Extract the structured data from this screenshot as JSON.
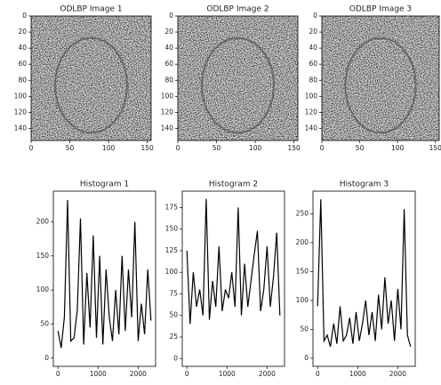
{
  "chart_data": [
    {
      "type": "image",
      "title": "ODLBP Image 1",
      "xlim": [
        0,
        155
      ],
      "ylim": [
        155,
        0
      ],
      "xticks": [
        0,
        50,
        100,
        150
      ],
      "yticks": [
        0,
        20,
        40,
        60,
        80,
        100,
        120,
        140
      ]
    },
    {
      "type": "image",
      "title": "ODLBP Image 2",
      "xlim": [
        0,
        155
      ],
      "ylim": [
        155,
        0
      ],
      "xticks": [
        0,
        50,
        100,
        150
      ],
      "yticks": [
        0,
        20,
        40,
        60,
        80,
        100,
        120,
        140
      ]
    },
    {
      "type": "image",
      "title": "ODLBP Image 3",
      "xlim": [
        0,
        155
      ],
      "ylim": [
        155,
        0
      ],
      "xticks": [
        0,
        50,
        100,
        150
      ],
      "yticks": [
        0,
        20,
        40,
        60,
        80,
        100,
        120,
        140
      ]
    },
    {
      "type": "line",
      "title": "Histogram 1",
      "color": "#000000",
      "x": [
        0,
        80,
        160,
        240,
        320,
        400,
        480,
        560,
        640,
        720,
        800,
        880,
        960,
        1040,
        1120,
        1200,
        1280,
        1360,
        1440,
        1520,
        1600,
        1680,
        1760,
        1840,
        1920,
        2000,
        2080,
        2160,
        2240,
        2320
      ],
      "values": [
        40,
        15,
        60,
        232,
        25,
        30,
        70,
        205,
        20,
        125,
        45,
        180,
        30,
        150,
        20,
        130,
        60,
        25,
        100,
        35,
        150,
        40,
        130,
        60,
        200,
        25,
        80,
        35,
        130,
        55
      ],
      "xlim": [
        -116,
        2436
      ],
      "ylim": [
        -12,
        245
      ],
      "xticks": [
        0,
        1000,
        2000
      ],
      "yticks": [
        0,
        50,
        100,
        150,
        200
      ]
    },
    {
      "type": "line",
      "title": "Histogram 2",
      "color": "#000000",
      "x": [
        0,
        80,
        160,
        240,
        320,
        400,
        480,
        560,
        640,
        720,
        800,
        880,
        960,
        1040,
        1120,
        1200,
        1280,
        1360,
        1440,
        1520,
        1600,
        1680,
        1760,
        1840,
        1920,
        2000,
        2080,
        2160,
        2240,
        2320
      ],
      "values": [
        125,
        40,
        100,
        60,
        80,
        50,
        185,
        45,
        90,
        60,
        130,
        55,
        80,
        70,
        100,
        60,
        175,
        50,
        110,
        60,
        90,
        120,
        148,
        55,
        80,
        130,
        60,
        95,
        146,
        50
      ],
      "xlim": [
        -116,
        2436
      ],
      "ylim": [
        -9,
        194
      ],
      "xticks": [
        0,
        1000,
        2000
      ],
      "yticks": [
        0,
        25,
        50,
        75,
        100,
        125,
        150,
        175
      ]
    },
    {
      "type": "line",
      "title": "Histogram 3",
      "color": "#000000",
      "x": [
        0,
        80,
        160,
        240,
        320,
        400,
        480,
        560,
        640,
        720,
        800,
        880,
        960,
        1040,
        1120,
        1200,
        1280,
        1360,
        1440,
        1520,
        1600,
        1680,
        1760,
        1840,
        1920,
        2000,
        2080,
        2160,
        2240,
        2320
      ],
      "values": [
        90,
        275,
        30,
        40,
        20,
        60,
        25,
        90,
        30,
        40,
        70,
        25,
        80,
        30,
        60,
        100,
        40,
        80,
        30,
        110,
        50,
        140,
        60,
        100,
        30,
        120,
        50,
        258,
        40,
        20
      ],
      "xlim": [
        -116,
        2436
      ],
      "ylim": [
        -14,
        289
      ],
      "xticks": [
        0,
        1000,
        2000
      ],
      "yticks": [
        0,
        50,
        100,
        150,
        200,
        250
      ]
    }
  ]
}
